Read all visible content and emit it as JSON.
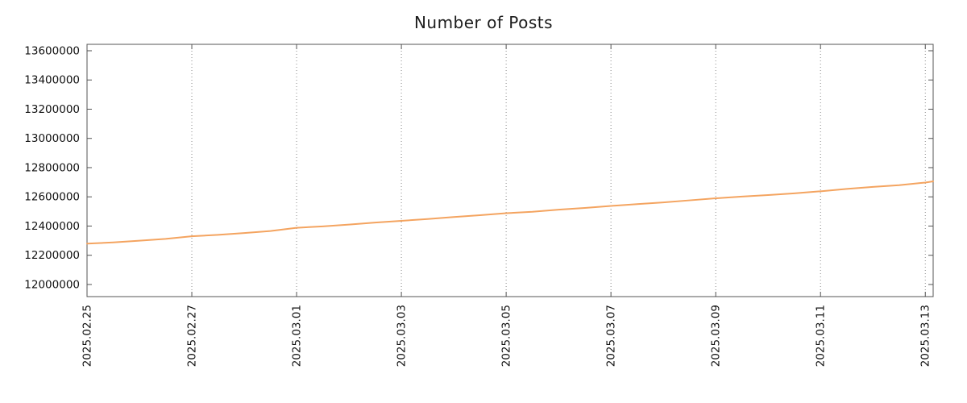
{
  "page": {
    "background": "#ffffff"
  },
  "chart_data": {
    "type": "line",
    "title": "Number of Posts",
    "xlabel": "",
    "ylabel": "",
    "grid": "vertical-dotted",
    "legend": "none",
    "line_color": "#f4a460",
    "axis_color": "#555555",
    "grid_color": "#8a8a8a",
    "tick_label_color": "#111111",
    "xlim_days": [
      0,
      16.15
    ],
    "ylim": [
      11917000,
      13644000
    ],
    "x_ticks": {
      "positions_days": [
        0,
        2,
        4,
        6,
        8,
        10,
        12,
        14,
        16
      ],
      "labels": [
        "2025.02.25",
        "2025.02.27",
        "2025.03.01",
        "2025.03.03",
        "2025.03.05",
        "2025.03.07",
        "2025.03.09",
        "2025.03.11",
        "2025.03.13"
      ]
    },
    "y_ticks": {
      "values": [
        12000000,
        12200000,
        12400000,
        12600000,
        12800000,
        13000000,
        13200000,
        13400000,
        13600000
      ],
      "labels": [
        "12000000",
        "12200000",
        "12400000",
        "12600000",
        "12800000",
        "13000000",
        "13200000",
        "13400000",
        "13600000"
      ]
    },
    "series": [
      {
        "name": "Number of Posts",
        "x_days": [
          0,
          0.5,
          1,
          1.5,
          2,
          2.5,
          3,
          3.5,
          4,
          4.5,
          5,
          5.5,
          6,
          6.5,
          7,
          7.5,
          8,
          8.5,
          9,
          9.5,
          10,
          10.5,
          11,
          11.5,
          12,
          12.5,
          13,
          13.5,
          14,
          14.5,
          15,
          15.5,
          16,
          16.15
        ],
        "values": [
          12280000,
          12288000,
          12300000,
          12312000,
          12330000,
          12340000,
          12352000,
          12366000,
          12388000,
          12398000,
          12410000,
          12424000,
          12436000,
          12448000,
          12462000,
          12474000,
          12488000,
          12498000,
          12512000,
          12524000,
          12538000,
          12550000,
          12562000,
          12576000,
          12590000,
          12602000,
          12612000,
          12624000,
          12638000,
          12654000,
          12668000,
          12680000,
          12698000,
          12706000
        ]
      }
    ]
  }
}
